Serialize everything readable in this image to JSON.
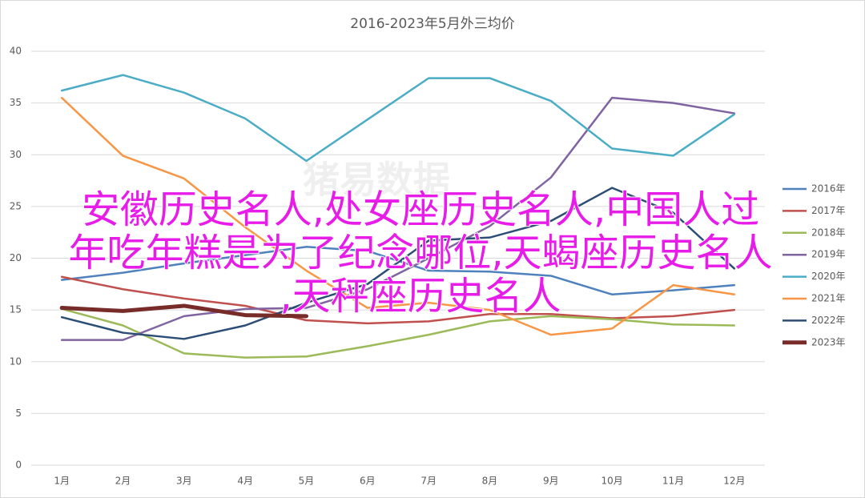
{
  "chart_data": {
    "type": "line",
    "title": "2016-2023年5月外三均价",
    "categories": [
      "1月",
      "2月",
      "3月",
      "4月",
      "5月",
      "6月",
      "7月",
      "8月",
      "9月",
      "10月",
      "11月",
      "12月"
    ],
    "series": [
      {
        "name": "2016年",
        "color": "#4f81bd",
        "values": [
          17.9,
          18.6,
          19.5,
          20.3,
          21.1,
          20.7,
          18.8,
          18.7,
          18.3,
          16.5,
          16.9,
          17.4
        ]
      },
      {
        "name": "2017年",
        "color": "#c0504d",
        "values": [
          18.2,
          17.0,
          16.1,
          15.4,
          14.0,
          13.7,
          13.9,
          14.6,
          14.6,
          14.2,
          14.4,
          15.0
        ]
      },
      {
        "name": "2018年",
        "color": "#9bbb59",
        "values": [
          15.1,
          13.5,
          10.8,
          10.4,
          10.5,
          11.5,
          12.6,
          13.9,
          14.4,
          14.1,
          13.6,
          13.5
        ]
      },
      {
        "name": "2019年",
        "color": "#8064a2",
        "values": [
          12.1,
          12.1,
          14.4,
          15.1,
          15.2,
          17.0,
          20.0,
          23.1,
          27.8,
          35.5,
          35.0,
          34.0
        ]
      },
      {
        "name": "2020年",
        "color": "#4bacc6",
        "values": [
          36.2,
          37.7,
          36.0,
          33.5,
          29.4,
          33.4,
          37.4,
          37.4,
          35.2,
          30.6,
          29.9,
          33.9
        ]
      },
      {
        "name": "2021年",
        "color": "#f79646",
        "values": [
          35.5,
          29.9,
          27.7,
          23.0,
          18.8,
          15.2,
          15.7,
          15.0,
          12.6,
          13.2,
          17.4,
          16.5
        ]
      },
      {
        "name": "2022年",
        "color": "#2c4d75",
        "values": [
          14.3,
          12.8,
          12.2,
          13.5,
          15.7,
          17.5,
          21.7,
          22.0,
          23.6,
          26.8,
          24.4,
          19.0
        ]
      },
      {
        "name": "2023年",
        "color": "#772c2a",
        "values": [
          15.2,
          14.9,
          15.4,
          14.5,
          14.4,
          null,
          null,
          null,
          null,
          null,
          null,
          null
        ]
      }
    ],
    "ylim": [
      0,
      40
    ],
    "yticks": [
      0,
      5,
      10,
      15,
      20,
      25,
      30,
      35,
      40
    ],
    "grid": true,
    "legend": "right",
    "watermark": "猪易数据"
  },
  "overlay": {
    "color": "#e81ce8",
    "lines": [
      "安徽历史名人,处女座历史名人,中国人过",
      "年吃年糕是为了纪念哪位,天蝎座历史名人",
      ",天秤座历史名人"
    ]
  }
}
